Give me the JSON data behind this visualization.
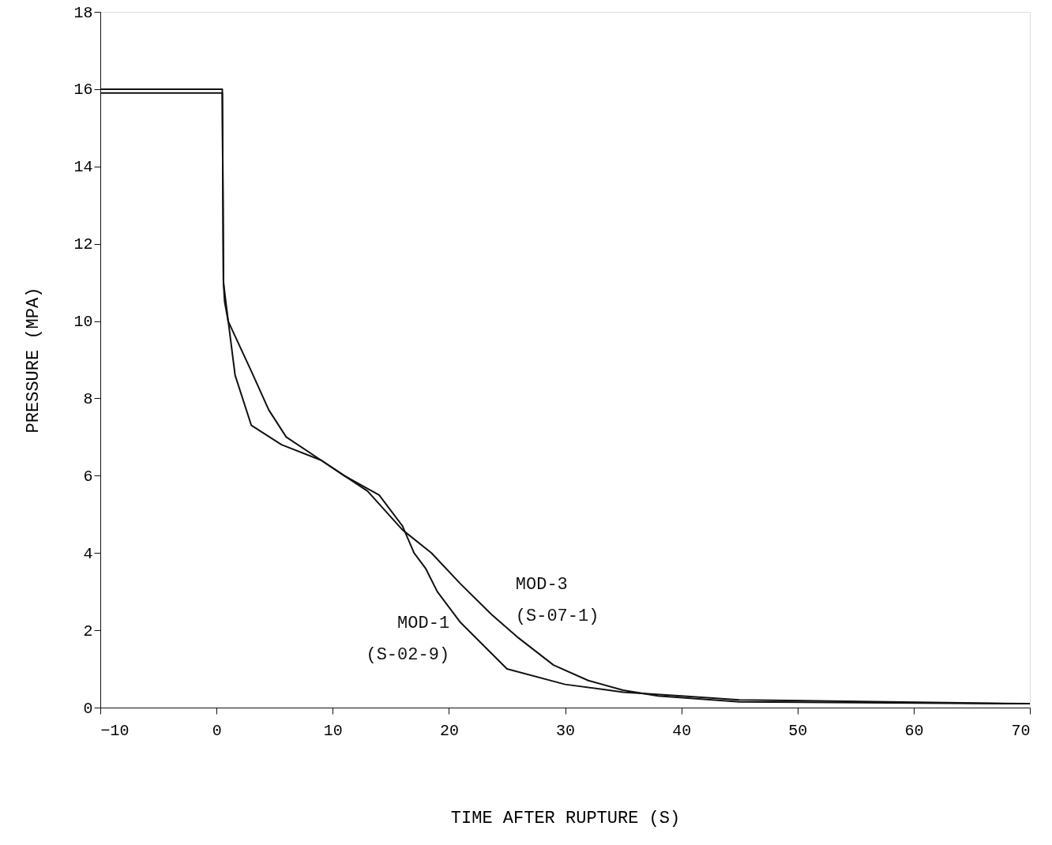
{
  "chart_data": {
    "type": "line",
    "xlabel": "TIME AFTER RUPTURE (S)",
    "ylabel": "PRESSURE (MPA)",
    "xlim": [
      -10,
      70
    ],
    "xticks": [
      -10,
      0,
      10,
      20,
      30,
      40,
      50,
      60,
      70
    ],
    "ylim": [
      0,
      18
    ],
    "yticks": [
      0,
      2,
      4,
      6,
      8,
      10,
      12,
      14,
      16,
      18
    ],
    "grid": false,
    "line_style": "solid",
    "series": [
      {
        "name": "MOD-1 (S-02-9)",
        "color": "#111111",
        "x": [
          -10,
          -5,
          0.5,
          0.6,
          0.8,
          1.6,
          3,
          5.6,
          9,
          11,
          14,
          16,
          17,
          18,
          19,
          21,
          25,
          30,
          35,
          40,
          45,
          70
        ],
        "values": [
          15.9,
          15.9,
          15.9,
          11,
          10.5,
          8.6,
          7.3,
          6.8,
          6.4,
          6.0,
          5.5,
          4.7,
          4.0,
          3.6,
          3.0,
          2.2,
          1.0,
          0.6,
          0.4,
          0.3,
          0.2,
          0.1
        ]
      },
      {
        "name": "MOD-3 (S-07-1)",
        "color": "#111111",
        "x": [
          -10,
          -5,
          0.5,
          0.6,
          0.7,
          1,
          3,
          4.5,
          6,
          9,
          11,
          13,
          16,
          18.5,
          21,
          23.7,
          26,
          29,
          32,
          35,
          38,
          45,
          70
        ],
        "values": [
          16.0,
          16.0,
          16.0,
          11,
          10.5,
          10,
          8.7,
          7.7,
          7.0,
          6.4,
          6.0,
          5.6,
          4.6,
          4.0,
          3.2,
          2.4,
          1.8,
          1.1,
          0.7,
          0.45,
          0.3,
          0.15,
          0.1
        ]
      }
    ]
  }
}
